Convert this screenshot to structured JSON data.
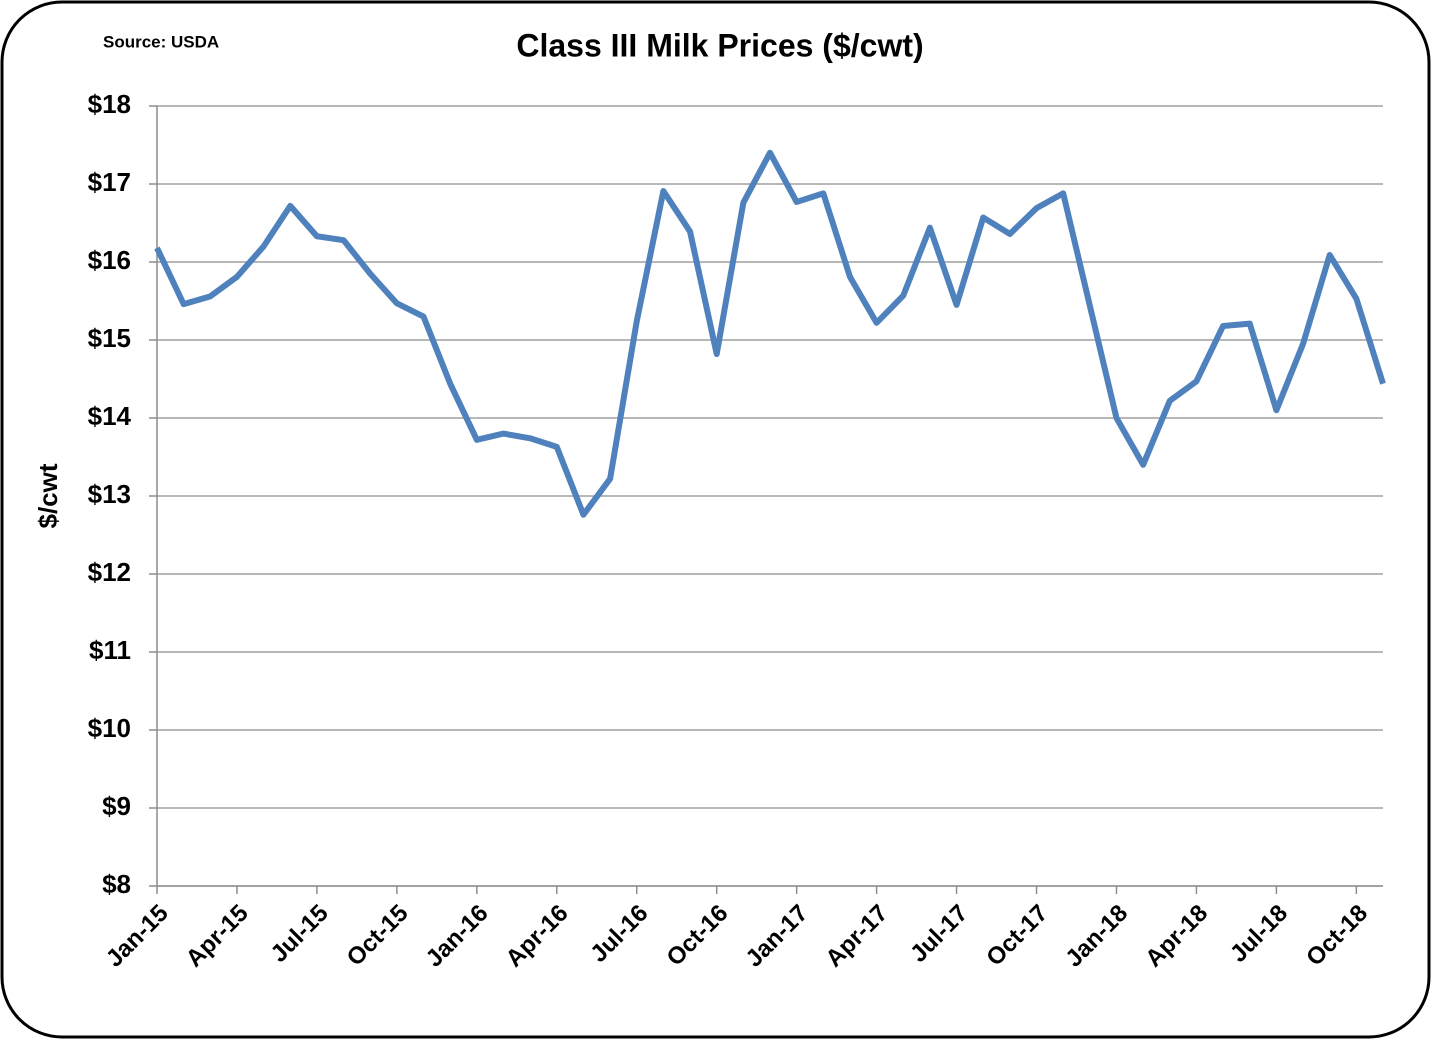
{
  "chart_data": {
    "type": "line",
    "title": "Class III Milk Prices ($/cwt)",
    "annotation": "Source: USDA",
    "y_label": "$/cwt",
    "categories": [
      "Jan-15",
      null,
      null,
      "Apr-15",
      null,
      null,
      "Jul-15",
      null,
      null,
      "Oct-15",
      null,
      null,
      "Jan-16",
      null,
      null,
      "Apr-16",
      null,
      null,
      "Jul-16",
      null,
      null,
      "Oct-16",
      null,
      null,
      "Jan-17",
      null,
      null,
      "Apr-17",
      null,
      null,
      "Jul-17",
      null,
      null,
      "Oct-17",
      null,
      null,
      "Jan-18",
      null,
      null,
      "Apr-18",
      null,
      null,
      "Jul-18",
      null,
      null,
      "Oct-18",
      null
    ],
    "values": [
      16.18,
      15.46,
      15.56,
      15.81,
      16.2,
      16.72,
      16.33,
      16.28,
      15.85,
      15.47,
      15.3,
      14.44,
      13.72,
      13.8,
      13.74,
      13.63,
      12.76,
      13.22,
      15.24,
      16.91,
      16.39,
      14.82,
      16.76,
      17.4,
      16.77,
      16.88,
      15.81,
      15.22,
      15.57,
      16.44,
      15.45,
      16.57,
      16.36,
      16.69,
      16.88,
      15.44,
      14.0,
      13.4,
      14.22,
      14.47,
      15.18,
      15.21,
      14.1,
      14.95,
      16.09,
      15.53,
      14.44
    ],
    "color": "#4f81bd",
    "ylim": [
      8,
      18
    ],
    "yticks": [
      {
        "value": 8,
        "label": "$8"
      },
      {
        "value": 9,
        "label": "$9"
      },
      {
        "value": 10,
        "label": "$10"
      },
      {
        "value": 11,
        "label": "$11"
      },
      {
        "value": 12,
        "label": "$12"
      },
      {
        "value": 13,
        "label": "$13"
      },
      {
        "value": 14,
        "label": "$14"
      },
      {
        "value": 15,
        "label": "$15"
      },
      {
        "value": 16,
        "label": "$16"
      },
      {
        "value": 17,
        "label": "$17"
      },
      {
        "value": 18,
        "label": "$18"
      }
    ],
    "grid": true
  }
}
